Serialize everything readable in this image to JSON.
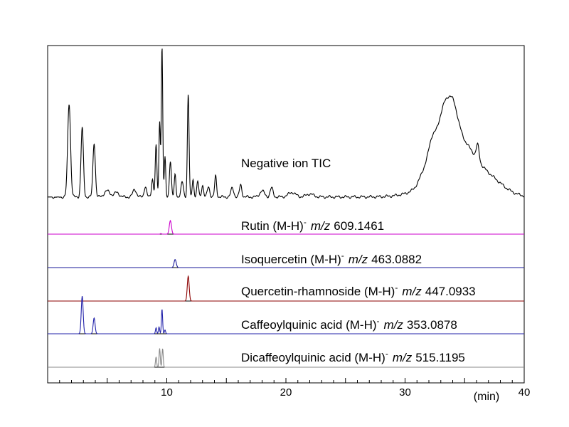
{
  "chart_data": {
    "type": "line",
    "x_unit": "(min)",
    "xlim": [
      0,
      40
    ],
    "x_ticks": [
      10,
      20,
      30,
      40
    ],
    "x_tick_labels": [
      "10",
      "20",
      "30",
      "40"
    ],
    "series": [
      {
        "name": "Negative ion TIC",
        "label_parts": [
          "Negative ion TIC"
        ],
        "color": "#000000",
        "baseline": 0.02,
        "peaks": [
          [
            1.8,
            0.62,
            0.12
          ],
          [
            2.9,
            0.46,
            0.1
          ],
          [
            3.9,
            0.36,
            0.1
          ],
          [
            5.0,
            0.04,
            0.25
          ],
          [
            5.8,
            0.03,
            0.2
          ],
          [
            7.3,
            0.05,
            0.15
          ],
          [
            8.2,
            0.07,
            0.1
          ],
          [
            8.8,
            0.12,
            0.08
          ],
          [
            9.1,
            0.34,
            0.07
          ],
          [
            9.4,
            0.5,
            0.06
          ],
          [
            9.6,
            1.0,
            0.06
          ],
          [
            9.85,
            0.26,
            0.06
          ],
          [
            10.3,
            0.24,
            0.08
          ],
          [
            10.7,
            0.15,
            0.07
          ],
          [
            11.3,
            0.1,
            0.1
          ],
          [
            11.8,
            0.68,
            0.07
          ],
          [
            12.2,
            0.12,
            0.07
          ],
          [
            12.6,
            0.1,
            0.08
          ],
          [
            13.0,
            0.08,
            0.08
          ],
          [
            13.5,
            0.07,
            0.1
          ],
          [
            14.1,
            0.14,
            0.08
          ],
          [
            15.5,
            0.06,
            0.12
          ],
          [
            16.2,
            0.08,
            0.1
          ],
          [
            18.0,
            0.04,
            0.2
          ],
          [
            18.8,
            0.06,
            0.12
          ],
          [
            20.5,
            0.03,
            0.3
          ],
          [
            22.0,
            0.02,
            0.3
          ],
          [
            31.8,
            0.12,
            0.5
          ],
          [
            32.3,
            0.16,
            0.3
          ],
          [
            33.0,
            0.2,
            0.4
          ],
          [
            33.6,
            0.27,
            0.6
          ],
          [
            34.0,
            0.19,
            0.5
          ],
          [
            35.0,
            0.14,
            0.8
          ],
          [
            36.1,
            0.1,
            1.4
          ],
          [
            36.1,
            0.1,
            0.12
          ],
          [
            37.5,
            0.04,
            1.2
          ]
        ],
        "hump": [
          33.8,
          0.14,
          2.0
        ]
      },
      {
        "name": "Rutin (M-H)- m/z 609.1461",
        "label_parts": [
          "Rutin (M-H)",
          "-",
          "m/z",
          "609.1461"
        ],
        "color": "#cc00cc",
        "baseline": 0.0,
        "peaks": [
          [
            10.3,
            0.95,
            0.09
          ],
          [
            9.5,
            0.04,
            0.05
          ]
        ]
      },
      {
        "name": "Isoquercetin (M-H)- m/z 463.0882",
        "label_parts": [
          "Isoquercetin (M-H)",
          "-",
          "m/z",
          "463.0882"
        ],
        "color": "#1a1a99",
        "baseline": 0.0,
        "peaks": [
          [
            10.7,
            0.95,
            0.09
          ]
        ]
      },
      {
        "name": "Quercetin-rhamnoside (M-H)- m/z 447.0933",
        "label_parts": [
          "Quercetin-rhamnoside (M-H)",
          "-",
          "m/z",
          "447.0933"
        ],
        "color": "#8b0000",
        "baseline": 0.0,
        "peaks": [
          [
            11.8,
            1.0,
            0.08
          ]
        ]
      },
      {
        "name": "Caffeoylquinic acid (M-H)- m/z 353.0878",
        "label_parts": [
          "Caffeoylquinic acid (M-H)",
          "-",
          "m/z",
          "353.0878"
        ],
        "color": "#2222aa",
        "baseline": 0.0,
        "peaks": [
          [
            2.9,
            1.0,
            0.08
          ],
          [
            3.9,
            0.42,
            0.08
          ],
          [
            9.1,
            0.16,
            0.05
          ],
          [
            9.35,
            0.18,
            0.05
          ],
          [
            9.6,
            0.66,
            0.05
          ],
          [
            9.85,
            0.1,
            0.05
          ]
        ]
      },
      {
        "name": "Dicaffeoylquinic acid (M-H)- m/z 515.1195",
        "label_parts": [
          "Dicaffeoylquinic acid (M-H)",
          "-",
          "m/z",
          "515.1195"
        ],
        "color": "#888888",
        "baseline": 0.0,
        "peaks": [
          [
            9.1,
            0.44,
            0.05
          ],
          [
            9.4,
            0.8,
            0.05
          ],
          [
            9.65,
            0.8,
            0.05
          ]
        ]
      }
    ]
  }
}
